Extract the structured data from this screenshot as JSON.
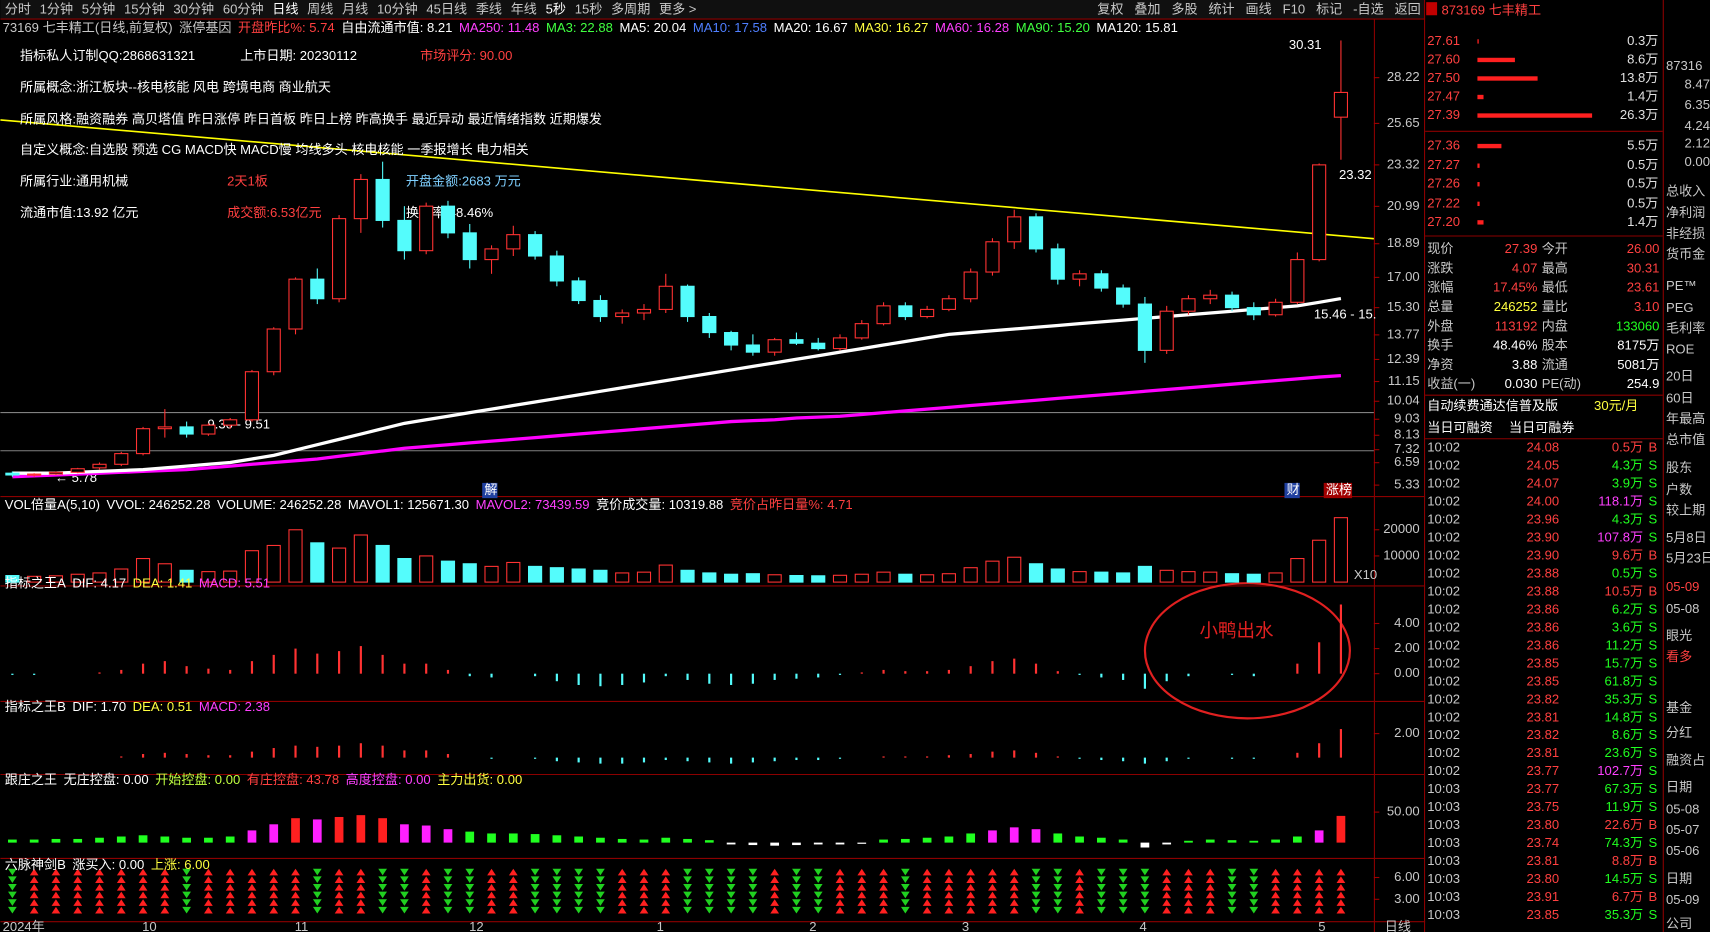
{
  "toolbar": {
    "periods": [
      "分时",
      "1分钟",
      "5分钟",
      "15分钟",
      "30分钟",
      "60分钟",
      "日线",
      "周线",
      "月线",
      "10分钟",
      "45日线",
      "季线",
      "年线",
      "5秒",
      "15秒",
      "多周期",
      "更多 >"
    ],
    "tools": [
      "复权",
      "叠加",
      "多股",
      "统计",
      "画线",
      "F10",
      "标记",
      "-自选",
      "返回"
    ]
  },
  "header": {
    "items": [
      "73169 七丰精工(日线,前复权)",
      "涨停基因",
      "开盘昨比%: 5.74",
      "自由流通市值: 8.21",
      "MA250: 11.48",
      "MA3: 22.88",
      "MA5: 20.04",
      "MA10: 17.58",
      "MA20: 16.67",
      "MA30: 16.27",
      "MA60: 16.28",
      "MA90: 15.20",
      "MA120: 15.81"
    ]
  },
  "annotations": [
    "指标私人订制QQ:2868631321",
    "上市日期: 20230112",
    "市场评分: 90.00",
    "所属概念:浙江板块--核电核能 风电 跨境电商 商业航天",
    "所属风格:融资融券 高贝塔值 昨日涨停 昨日首板 昨日上榜 昨高换手 最近异动 最近情绪指数 近期爆发",
    "自定义概念:自选股 预选 CG MACD快 MACD慢 均线多头 核电核能 一季报增长 电力相关",
    "所属行业:通用机械",
    "2天1板",
    "开盘金额:2683 万元",
    "流通市值:13.92 亿元",
    "成交额:6.53亿元",
    "换手率:48.46%",
    "30.31",
    "23.32",
    "9.30 - 9.51",
    "← 5.78",
    "15.46 - 15.",
    "解",
    "财",
    "涨榜",
    "小鸭出水"
  ],
  "chart_data": [
    {
      "type": "candlestick",
      "ylim": [
        4.72,
        31.48
      ],
      "yticks": [
        28.22,
        25.65,
        23.32,
        20.99,
        18.89,
        {
          "value": 17,
          "label": "17.00"
        },
        {
          "value": 15.3,
          "label": "15.30"
        },
        13.77,
        12.39,
        11.15,
        10.04,
        9.03,
        8.13,
        7.32,
        6.59,
        5.33
      ],
      "up_color": "#ff3232",
      "down_color": "#54fcfc",
      "ohlc": [
        [
          6.0,
          6.1,
          5.8,
          5.9
        ],
        [
          5.9,
          6.0,
          5.8,
          5.95
        ],
        [
          5.95,
          6.1,
          5.9,
          6.05
        ],
        [
          6.05,
          6.3,
          6.0,
          6.25
        ],
        [
          6.3,
          6.6,
          6.2,
          6.5
        ],
        [
          6.5,
          7.2,
          6.4,
          7.1
        ],
        [
          7.1,
          8.6,
          7.0,
          8.5
        ],
        [
          8.5,
          9.6,
          8.0,
          8.6
        ],
        [
          8.6,
          8.9,
          8.0,
          8.2
        ],
        [
          8.2,
          8.8,
          8.1,
          8.7
        ],
        [
          8.7,
          9.1,
          8.5,
          9.0
        ],
        [
          9.0,
          11.8,
          8.9,
          11.7
        ],
        [
          11.7,
          14.2,
          11.5,
          14.1
        ],
        [
          14.1,
          17.0,
          13.8,
          16.9
        ],
        [
          16.9,
          17.5,
          15.5,
          15.8
        ],
        [
          15.8,
          20.5,
          15.6,
          20.3
        ],
        [
          20.3,
          22.8,
          19.5,
          22.5
        ],
        [
          22.5,
          23.5,
          19.8,
          20.2
        ],
        [
          20.2,
          21.0,
          18.0,
          18.5
        ],
        [
          18.5,
          21.2,
          18.3,
          21.0
        ],
        [
          21.0,
          21.3,
          19.2,
          19.5
        ],
        [
          19.5,
          20.0,
          17.5,
          18.0
        ],
        [
          18.0,
          18.8,
          17.2,
          18.6
        ],
        [
          18.6,
          19.9,
          18.2,
          19.4
        ],
        [
          19.4,
          19.6,
          18.0,
          18.2
        ],
        [
          18.2,
          18.5,
          16.5,
          16.8
        ],
        [
          16.8,
          17.0,
          15.5,
          15.7
        ],
        [
          15.7,
          16.0,
          14.5,
          14.8
        ],
        [
          14.8,
          15.2,
          14.4,
          15.0
        ],
        [
          15.0,
          15.5,
          14.6,
          15.2
        ],
        [
          15.2,
          17.2,
          15.0,
          16.5
        ],
        [
          16.5,
          16.6,
          14.5,
          14.8
        ],
        [
          14.8,
          15.0,
          13.6,
          13.9
        ],
        [
          13.9,
          14.0,
          12.9,
          13.2
        ],
        [
          13.2,
          13.8,
          12.6,
          12.8
        ],
        [
          12.8,
          13.6,
          12.6,
          13.5
        ],
        [
          13.5,
          13.9,
          13.2,
          13.3
        ],
        [
          13.3,
          13.6,
          12.9,
          13.0
        ],
        [
          13.0,
          13.8,
          12.9,
          13.6
        ],
        [
          13.6,
          14.6,
          13.5,
          14.4
        ],
        [
          14.4,
          15.6,
          14.3,
          15.4
        ],
        [
          15.4,
          15.6,
          14.6,
          14.8
        ],
        [
          14.8,
          15.4,
          14.7,
          15.2
        ],
        [
          15.2,
          16.0,
          15.1,
          15.8
        ],
        [
          15.8,
          17.5,
          15.6,
          17.3
        ],
        [
          17.3,
          19.2,
          17.1,
          19.0
        ],
        [
          19.0,
          20.8,
          18.6,
          20.4
        ],
        [
          20.4,
          20.6,
          18.4,
          18.6
        ],
        [
          18.6,
          18.9,
          16.6,
          16.9
        ],
        [
          16.9,
          17.4,
          16.5,
          17.2
        ],
        [
          17.2,
          17.4,
          16.2,
          16.4
        ],
        [
          16.4,
          16.6,
          15.3,
          15.5
        ],
        [
          15.5,
          15.9,
          12.2,
          12.9
        ],
        [
          12.9,
          15.4,
          12.7,
          15.1
        ],
        [
          15.1,
          16.0,
          14.9,
          15.8
        ],
        [
          15.8,
          16.3,
          15.5,
          16.0
        ],
        [
          16.0,
          16.2,
          15.1,
          15.3
        ],
        [
          15.3,
          15.6,
          14.6,
          14.9
        ],
        [
          14.9,
          15.8,
          14.8,
          15.6
        ],
        [
          15.6,
          18.4,
          15.5,
          18.0
        ],
        [
          18.0,
          23.4,
          17.9,
          23.32
        ],
        [
          26.0,
          30.31,
          23.61,
          27.39
        ]
      ],
      "lines": [
        {
          "color": "#ff00ff",
          "values": [
            5.8,
            5.85,
            5.9,
            5.95,
            6.0,
            6.05,
            6.1,
            6.15,
            6.2,
            6.3,
            6.4,
            6.5,
            6.6,
            6.7,
            6.8,
            6.95,
            7.1,
            7.25,
            7.4,
            7.5,
            7.6,
            7.7,
            7.8,
            7.9,
            8.0,
            8.1,
            8.2,
            8.3,
            8.4,
            8.5,
            8.6,
            8.7,
            8.8,
            8.9,
            8.95,
            9.0,
            9.1,
            9.15,
            9.2,
            9.3,
            9.4,
            9.5,
            9.6,
            9.7,
            9.8,
            9.9,
            10.0,
            10.1,
            10.2,
            10.3,
            10.4,
            10.5,
            10.6,
            10.7,
            10.8,
            10.9,
            11.0,
            11.1,
            11.2,
            11.3,
            11.4,
            11.48
          ]
        },
        {
          "color": "#ffffff",
          "values": [
            6.0,
            6.0,
            6.0,
            6.05,
            6.1,
            6.15,
            6.2,
            6.3,
            6.4,
            6.5,
            6.6,
            6.8,
            7.0,
            7.3,
            7.6,
            7.9,
            8.2,
            8.5,
            8.8,
            9.0,
            9.2,
            9.4,
            9.6,
            9.8,
            10.0,
            10.2,
            10.4,
            10.6,
            10.8,
            11.0,
            11.2,
            11.4,
            11.6,
            11.8,
            12.0,
            12.2,
            12.4,
            12.6,
            12.8,
            13.0,
            13.2,
            13.4,
            13.6,
            13.8,
            13.9,
            14.0,
            14.1,
            14.2,
            14.3,
            14.4,
            14.5,
            14.6,
            14.7,
            14.8,
            14.9,
            15.0,
            15.1,
            15.2,
            15.3,
            15.4,
            15.6,
            15.81
          ]
        }
      ]
    },
    {
      "type": "volume",
      "header": [
        "VOL倍量A(5,10)",
        "VVOL: 246252.28",
        "VOLUME: 246252.28",
        "MAVOL1: 125671.30",
        "MAVOL2: 73439.59",
        "竞价成交量: 10319.88",
        "竞价占昨日量%: 4.71"
      ],
      "ylim": [
        0,
        30000
      ],
      "yticks": [
        10000,
        20000
      ],
      "multiplier_label": "X10",
      "values": [
        2500,
        2200,
        2400,
        3000,
        3500,
        5000,
        9000,
        7000,
        4500,
        4000,
        4200,
        12000,
        14000,
        20000,
        15000,
        13000,
        18000,
        14000,
        9000,
        10000,
        8000,
        7000,
        6000,
        7500,
        6000,
        5500,
        5000,
        4500,
        3500,
        3800,
        6500,
        4500,
        3500,
        3000,
        3200,
        2800,
        2500,
        2400,
        2600,
        3000,
        3800,
        3000,
        2800,
        3200,
        5500,
        8000,
        9500,
        7000,
        5000,
        4000,
        3800,
        3500,
        6000,
        4500,
        4000,
        3800,
        3200,
        3000,
        3500,
        9000,
        16000,
        24625
      ]
    },
    {
      "type": "macd",
      "header": [
        "指标之王A",
        "DIF: 4.17",
        "DEA: 1.41",
        "MACD: 5.51"
      ],
      "ylim": [
        -2.17,
        7.04
      ],
      "yticks": [
        {
          "value": 0,
          "label": "0.00"
        },
        {
          "value": 2,
          "label": "2.00"
        },
        {
          "value": 4,
          "label": "4.00"
        }
      ],
      "values": [
        -0.1,
        -0.1,
        0,
        0,
        0.1,
        0.3,
        0.8,
        1.0,
        0.6,
        0.4,
        0.3,
        1.0,
        1.5,
        2.0,
        1.6,
        1.8,
        2.2,
        1.5,
        0.8,
        0.8,
        0.3,
        -0.2,
        -0.3,
        0,
        -0.2,
        -0.6,
        -0.9,
        -1.0,
        -0.9,
        -0.7,
        -0.2,
        -0.5,
        -0.8,
        -0.9,
        -0.8,
        -0.5,
        -0.4,
        -0.3,
        -0.1,
        0.1,
        0.3,
        0.2,
        0.2,
        0.3,
        0.6,
        1.0,
        1.2,
        0.8,
        0.2,
        -0.1,
        -0.3,
        -0.5,
        -1.2,
        -0.6,
        -0.2,
        0,
        -0.1,
        -0.2,
        0,
        0.8,
        2.5,
        5.51
      ]
    },
    {
      "type": "macd",
      "header": [
        "指标之王B",
        "DIF: 1.70",
        "DEA: 0.51",
        "MACD: 2.38"
      ],
      "ylim": [
        -1.36,
        4.09
      ],
      "yticks": [
        {
          "value": 2,
          "label": "2.00"
        }
      ],
      "values": [
        0,
        0,
        0,
        0,
        0,
        0.1,
        0.3,
        0.4,
        0.3,
        0.2,
        0.2,
        0.5,
        0.8,
        1.0,
        0.9,
        1.0,
        1.2,
        1.0,
        0.6,
        0.6,
        0.3,
        0,
        -0.1,
        0,
        -0.1,
        -0.3,
        -0.4,
        -0.5,
        -0.5,
        -0.4,
        -0.2,
        -0.3,
        -0.4,
        -0.5,
        -0.4,
        -0.3,
        -0.2,
        -0.2,
        -0.1,
        0,
        0.1,
        0.1,
        0.1,
        0.2,
        0.3,
        0.5,
        0.6,
        0.4,
        0.1,
        -0.1,
        -0.2,
        -0.3,
        -0.5,
        -0.3,
        -0.1,
        0,
        -0.1,
        -0.1,
        0,
        0.4,
        1.2,
        2.38
      ]
    },
    {
      "type": "bar",
      "header": [
        "跟庄之王",
        "无庄控盘: 0.00",
        "开始控盘: 0.00",
        "有庄控盘: 43.78",
        "高度控盘: 0.00",
        "主力出货: 0.00"
      ],
      "ylim": [
        -25,
        100
      ],
      "yticks": [
        {
          "value": 50,
          "label": "50.00"
        }
      ],
      "values": [
        5,
        5,
        6,
        6,
        8,
        10,
        12,
        10,
        8,
        8,
        10,
        20,
        30,
        40,
        38,
        42,
        45,
        40,
        30,
        28,
        22,
        18,
        15,
        15,
        14,
        12,
        10,
        8,
        6,
        5,
        8,
        6,
        4,
        -3,
        -4,
        -5,
        -4,
        -3,
        -3,
        -2,
        5,
        6,
        8,
        10,
        15,
        20,
        25,
        22,
        15,
        10,
        8,
        5,
        -8,
        -3,
        3,
        5,
        4,
        3,
        5,
        10,
        20,
        43.78
      ]
    },
    {
      "type": "signal",
      "header": [
        "六脉神剑B",
        "涨买入: 0.00",
        "上涨: 6.00"
      ],
      "ylim": [
        0,
        8.7
      ],
      "yticks": [
        {
          "value": 3,
          "label": "3.00"
        },
        {
          "value": 6,
          "label": "6.00"
        }
      ]
    }
  ],
  "date_axis": {
    "labels": [
      "2024年",
      "10",
      "11",
      "12",
      "1",
      "2",
      "3",
      "4",
      "5"
    ],
    "period": "日线"
  },
  "order_book": {
    "title": "873169 七丰精工",
    "sell": [
      {
        "price": "27.61",
        "vol": 0.3,
        "vol_label": "0.3万"
      },
      {
        "price": "27.60",
        "vol": 8.6,
        "vol_label": "8.6万"
      },
      {
        "price": "27.50",
        "vol": 13.8,
        "vol_label": "13.8万"
      },
      {
        "price": "27.47",
        "vol": 1.4,
        "vol_label": "1.4万"
      },
      {
        "price": "27.39",
        "vol": 26.3,
        "vol_label": "26.3万"
      }
    ],
    "buy": [
      {
        "price": "27.36",
        "vol": 5.5,
        "vol_label": "5.5万"
      },
      {
        "price": "27.27",
        "vol": 0.5,
        "vol_label": "0.5万"
      },
      {
        "price": "27.26",
        "vol": 0.5,
        "vol_label": "0.5万"
      },
      {
        "price": "27.22",
        "vol": 0.5,
        "vol_label": "0.5万"
      },
      {
        "price": "27.20",
        "vol": 1.4,
        "vol_label": "1.4万"
      }
    ]
  },
  "quote": {
    "rows": [
      [
        "现价",
        "27.39",
        "今开",
        "26.00"
      ],
      [
        "涨跌",
        "4.07",
        "最高",
        "30.31"
      ],
      [
        "涨幅",
        "17.45%",
        "最低",
        "23.61"
      ],
      [
        "总量",
        "246252",
        "量比",
        "3.10"
      ],
      [
        "外盘",
        "113192",
        "内盘",
        "133060"
      ],
      [
        "换手",
        "48.46%",
        "股本",
        "8175万"
      ],
      [
        "净资",
        "3.88",
        "流通",
        "5081万"
      ],
      [
        "收益(一)",
        "0.030",
        "PE(动)",
        "254.9"
      ]
    ],
    "ad": [
      "自动续费通达信普及版",
      "30元/月"
    ],
    "margin": [
      "当日可融资",
      "当日可融券"
    ]
  },
  "trades": [
    [
      "10:02",
      "24.08",
      "0.5万",
      "B"
    ],
    [
      "10:02",
      "24.05",
      "4.3万",
      "S"
    ],
    [
      "10:02",
      "24.07",
      "3.9万",
      "S"
    ],
    [
      "10:02",
      "24.00",
      "118.1万",
      "S"
    ],
    [
      "10:02",
      "23.96",
      "4.3万",
      "S"
    ],
    [
      "10:02",
      "23.90",
      "107.8万",
      "S"
    ],
    [
      "10:02",
      "23.90",
      "9.6万",
      "B"
    ],
    [
      "10:02",
      "23.88",
      "0.5万",
      "S"
    ],
    [
      "10:02",
      "23.88",
      "10.5万",
      "B"
    ],
    [
      "10:02",
      "23.86",
      "6.2万",
      "S"
    ],
    [
      "10:02",
      "23.86",
      "3.6万",
      "S"
    ],
    [
      "10:02",
      "23.86",
      "11.2万",
      "S"
    ],
    [
      "10:02",
      "23.85",
      "15.7万",
      "S"
    ],
    [
      "10:02",
      "23.85",
      "61.8万",
      "S"
    ],
    [
      "10:02",
      "23.82",
      "35.3万",
      "S"
    ],
    [
      "10:02",
      "23.81",
      "14.8万",
      "S"
    ],
    [
      "10:02",
      "23.82",
      "8.6万",
      "S"
    ],
    [
      "10:02",
      "23.81",
      "23.6万",
      "S"
    ],
    [
      "10:02",
      "23.77",
      "102.7万",
      "S"
    ],
    [
      "10:03",
      "23.77",
      "67.3万",
      "S"
    ],
    [
      "10:03",
      "23.75",
      "11.9万",
      "S"
    ],
    [
      "10:03",
      "23.80",
      "22.6万",
      "B"
    ],
    [
      "10:03",
      "23.74",
      "74.3万",
      "S"
    ],
    [
      "10:03",
      "23.81",
      "8.8万",
      "B"
    ],
    [
      "10:03",
      "23.80",
      "14.5万",
      "S"
    ],
    [
      "10:03",
      "23.91",
      "6.7万",
      "B"
    ],
    [
      "10:03",
      "23.85",
      "35.3万",
      "S"
    ]
  ],
  "side_panel": {
    "mini_axis": [
      "8.47",
      "6.35",
      "4.24",
      "2.12",
      "0.00"
    ],
    "items": [
      "87316",
      "总收入",
      "净利润",
      "非经损",
      "货币金",
      "PE™",
      "PEG",
      "毛利率",
      "ROE",
      "20日",
      "60日",
      "年最高",
      "总市值",
      "股东",
      "户数",
      "较上期",
      "5月8日",
      "5月23日",
      "05-09",
      "05-08",
      "眼光",
      "看多",
      "基金",
      "分红",
      "融资占",
      "日期",
      "05-08",
      "05-07",
      "05-06",
      "日期",
      "05-09",
      "公司"
    ]
  }
}
